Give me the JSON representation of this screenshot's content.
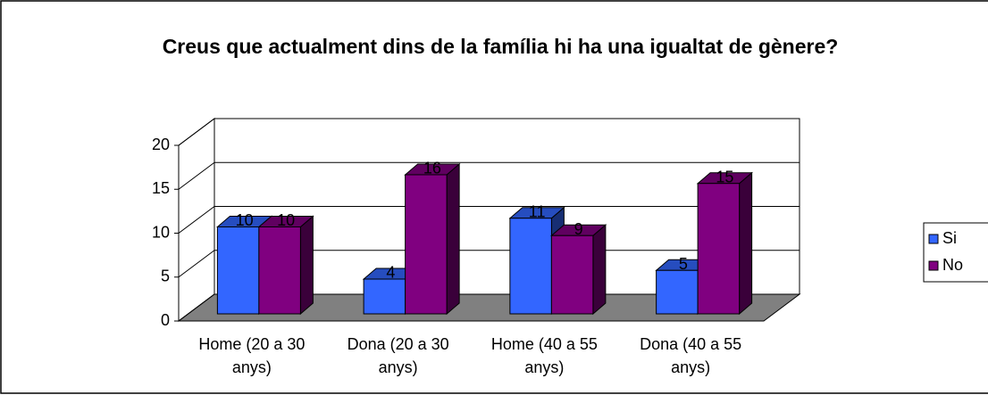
{
  "chart_data": {
    "type": "bar3d",
    "title": "Creus que actualment dins de la família hi ha una igualtat de gènere?",
    "categories": [
      "Home (20 a 30 anys)",
      "Dona (20 a 30 anys)",
      "Home (40 a 55 anys)",
      "Dona (40 a 55 anys)"
    ],
    "series": [
      {
        "name": "Si",
        "color": "#3366ff",
        "values": [
          10,
          4,
          11,
          5
        ]
      },
      {
        "name": "No",
        "color": "#800080",
        "values": [
          10,
          16,
          9,
          15
        ]
      }
    ],
    "ylim": [
      0,
      20
    ],
    "yticks": [
      0,
      5,
      10,
      15,
      20
    ],
    "grid": true,
    "legend": "right"
  }
}
